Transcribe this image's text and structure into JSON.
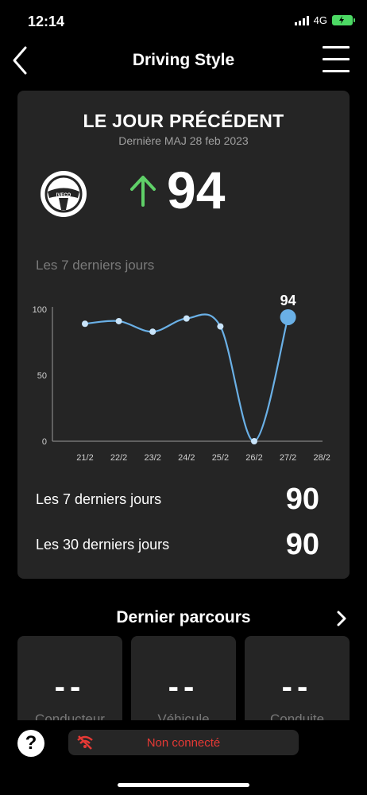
{
  "status_bar": {
    "time": "12:14",
    "network": "4G"
  },
  "header": {
    "title": "Driving Style"
  },
  "card": {
    "title": "LE JOUR PRÉCÉDENT",
    "subtitle": "Dernière MAJ 28 feb 2023",
    "logo_text": "IVECO",
    "score": "94",
    "trend": "up",
    "chart_caption": "Les 7 derniers jours",
    "summary": [
      {
        "label": "Les 7 derniers jours",
        "value": "90"
      },
      {
        "label": "Les 30 derniers jours",
        "value": "90"
      }
    ]
  },
  "chart_data": {
    "type": "line",
    "categories": [
      "21/2",
      "22/2",
      "23/2",
      "24/2",
      "25/2",
      "26/2",
      "27/2",
      "28/2"
    ],
    "values": [
      89,
      91,
      83,
      93,
      87,
      0,
      94,
      null
    ],
    "highlight": {
      "category": "27/2",
      "label": "94"
    },
    "yticks": [
      0,
      50,
      100
    ],
    "ylim": [
      0,
      100
    ],
    "line_color": "#6ab0e6",
    "grid": false
  },
  "last_trip": {
    "title": "Dernier parcours",
    "tiles": [
      {
        "value": "--",
        "label": "Conducteur"
      },
      {
        "value": "--",
        "label": "Véhicule"
      },
      {
        "value": "--",
        "label": "Conduite"
      }
    ]
  },
  "footer": {
    "connection_status": "Non connecté",
    "help": "?"
  },
  "colors": {
    "background": "#000000",
    "card": "#252525",
    "accent_green": "#5fd068",
    "accent_red": "#e53935"
  }
}
